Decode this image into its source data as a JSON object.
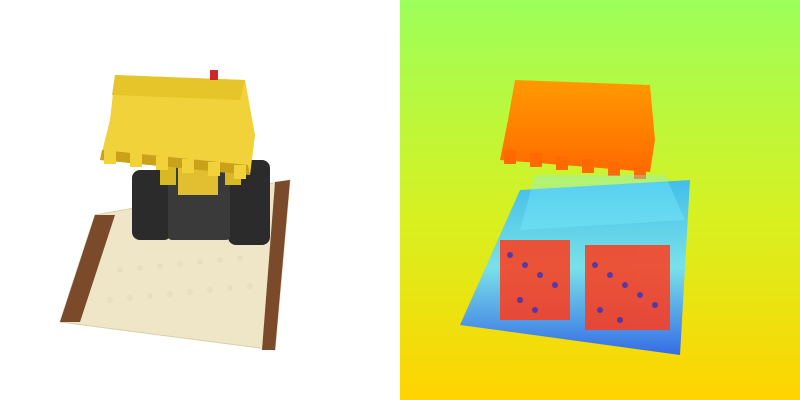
{
  "figure": {
    "panels": [
      {
        "name": "rgb-render",
        "subject": "LEGO bulldozer"
      },
      {
        "name": "depth-map",
        "colormap": "jet"
      }
    ]
  },
  "palette": {
    "rgb_background": "#ffffff",
    "bulldozer_yellow": "#f2d23a",
    "bulldozer_shadow": "#c9a21a",
    "track_dark": "#2b2b2b",
    "baseplate": "#efe6c8",
    "brick_brown": "#7a4a2a",
    "depth_top": "#9cff5a",
    "depth_bottom": "#ffd400",
    "depth_near": "#ff8c00",
    "depth_far": "#2ea6ff"
  }
}
